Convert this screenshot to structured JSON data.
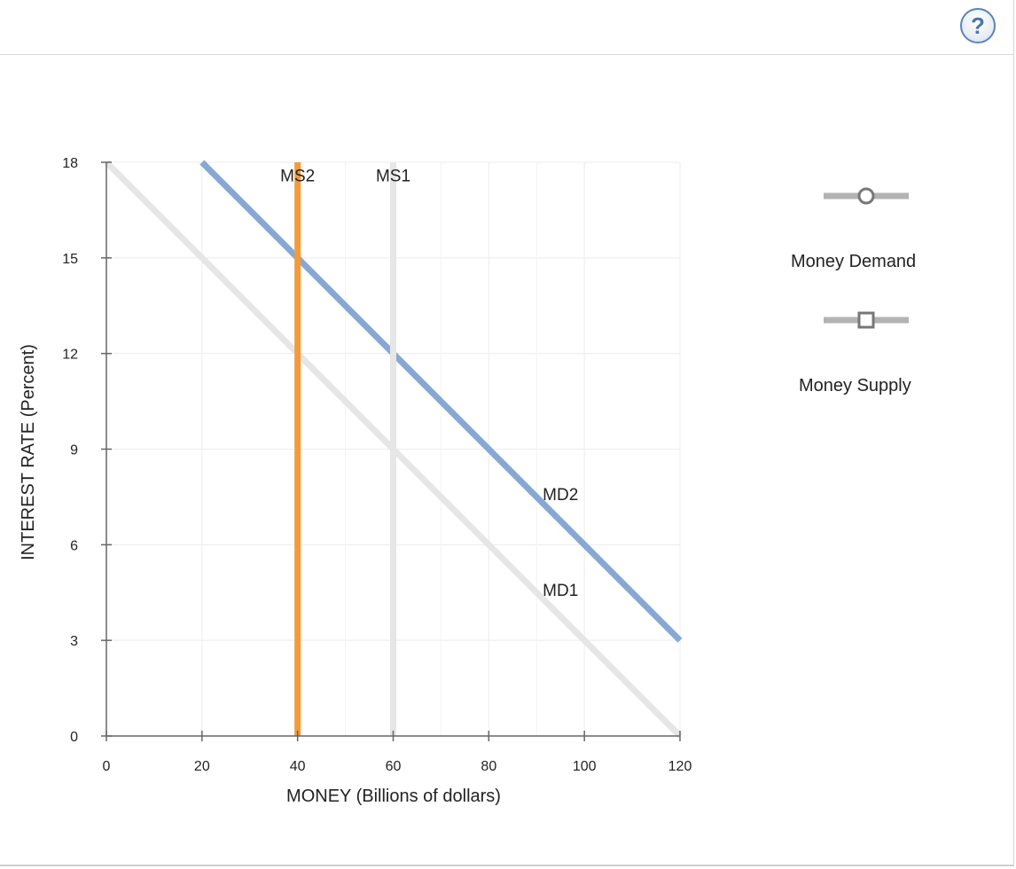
{
  "toolbar": {
    "help_label": "?"
  },
  "chart_data": {
    "type": "line",
    "xlabel": "MONEY (Billions of dollars)",
    "ylabel": "INTEREST RATE (Percent)",
    "xlim": [
      0,
      120
    ],
    "ylim": [
      0,
      18
    ],
    "xticks": [
      0,
      20,
      40,
      60,
      80,
      100,
      120
    ],
    "yticks": [
      0,
      3,
      6,
      9,
      12,
      15,
      18
    ],
    "grid": true,
    "series": [
      {
        "name": "MD1",
        "kind": "demand",
        "color": "#e6e6e6",
        "points": [
          [
            0,
            18
          ],
          [
            120,
            0
          ]
        ]
      },
      {
        "name": "MD2",
        "kind": "demand",
        "color": "#86a9d4",
        "points": [
          [
            20,
            18
          ],
          [
            120,
            3
          ]
        ]
      },
      {
        "name": "MS1",
        "kind": "supply",
        "color": "#e6e6e6",
        "points": [
          [
            60,
            0
          ],
          [
            60,
            18
          ]
        ]
      },
      {
        "name": "MS2",
        "kind": "supply",
        "color": "#f39a3a",
        "points": [
          [
            40,
            0
          ],
          [
            40,
            18
          ]
        ]
      }
    ],
    "annotations": [
      {
        "text": "MS2",
        "x": 40,
        "y": 17.4
      },
      {
        "text": "MS1",
        "x": 60,
        "y": 17.4
      },
      {
        "text": "MD2",
        "x": 95,
        "y": 7.4
      },
      {
        "text": "MD1",
        "x": 95,
        "y": 4.4
      }
    ]
  },
  "legend": {
    "items": [
      {
        "label": "Money Demand",
        "marker": "circle-marker-icon"
      },
      {
        "label": "Money Supply",
        "marker": "square-marker-icon"
      }
    ]
  }
}
